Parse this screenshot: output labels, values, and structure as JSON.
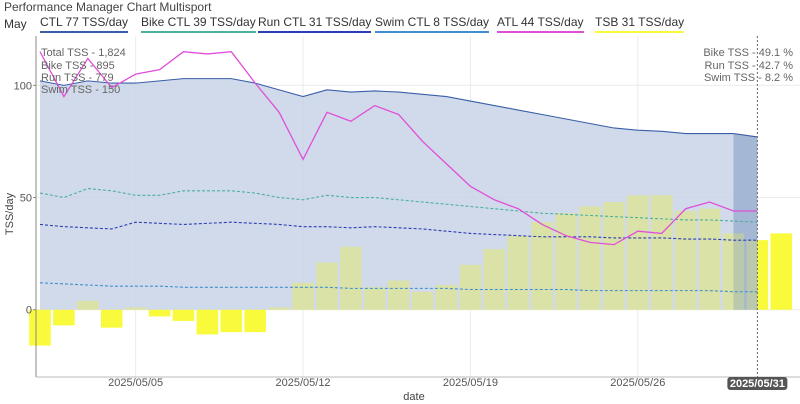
{
  "header": {
    "title": "Performance Manager Chart Multisport",
    "month": "May"
  },
  "legend": [
    {
      "label": "CTL  77 TSS/day",
      "color": "#3a5fa8"
    },
    {
      "label": "Bike CTL  39 TSS/day",
      "color": "#4ab0a0"
    },
    {
      "label": "Run CTL  31 TSS/day",
      "color": "#2b3fb5"
    },
    {
      "label": "Swim CTL  8 TSS/day",
      "color": "#3f8fd0"
    },
    {
      "label": "ATL  44 TSS/day",
      "color": "#e04fd8"
    },
    {
      "label": "TSB  31 TSS/day",
      "color": "#fafa3c"
    }
  ],
  "stats_left": [
    "Total TSS - 1,824",
    "Bike TSS - 895",
    "Run TSS - 779",
    "Swim TSS - 150"
  ],
  "stats_right": [
    "Bike TSS - 49.1 %",
    "Run TSS - 42.7 %",
    "Swim TSS - 8.2 %"
  ],
  "cursor_label": "2025/05/31",
  "chart_data": {
    "type": "line",
    "xlabel": "date",
    "ylabel": "TSS/day",
    "x_ticks": [
      "2025/05/05",
      "2025/05/12",
      "2025/05/19",
      "2025/05/26"
    ],
    "y_ticks": [
      0,
      50,
      100
    ],
    "ylim": [
      -30,
      122
    ],
    "x": [
      "2025/05/01",
      "2025/05/02",
      "2025/05/03",
      "2025/05/04",
      "2025/05/05",
      "2025/05/06",
      "2025/05/07",
      "2025/05/08",
      "2025/05/09",
      "2025/05/10",
      "2025/05/11",
      "2025/05/12",
      "2025/05/13",
      "2025/05/14",
      "2025/05/15",
      "2025/05/16",
      "2025/05/17",
      "2025/05/18",
      "2025/05/19",
      "2025/05/20",
      "2025/05/21",
      "2025/05/22",
      "2025/05/23",
      "2025/05/24",
      "2025/05/25",
      "2025/05/26",
      "2025/05/27",
      "2025/05/28",
      "2025/05/29",
      "2025/05/30",
      "2025/05/31",
      "2025/06/01"
    ],
    "series": [
      {
        "name": "CTL",
        "color": "#3a5fa8",
        "style": "area",
        "values": [
          102,
          100,
          102,
          101,
          101,
          102,
          103,
          103,
          103,
          101,
          98,
          95,
          98,
          97,
          97.5,
          97,
          96,
          95,
          93,
          91,
          89,
          87,
          85,
          83,
          81,
          80,
          79.5,
          78.5,
          78.5,
          78.5,
          77,
          null
        ]
      },
      {
        "name": "Bike CTL",
        "color": "#4ab0a0",
        "style": "dashed",
        "values": [
          52,
          50,
          54,
          53,
          51,
          51,
          53,
          53,
          53,
          52,
          50,
          49,
          51,
          50,
          50,
          49,
          48,
          47,
          46,
          45,
          44,
          43,
          42.5,
          42,
          41.5,
          41,
          40.5,
          40,
          40,
          39.5,
          39,
          null
        ]
      },
      {
        "name": "Run CTL",
        "color": "#2b3fb5",
        "style": "dashed",
        "values": [
          38,
          37,
          36.5,
          36,
          39,
          38.5,
          38,
          38.5,
          39,
          38.5,
          38,
          37,
          37,
          36.5,
          37,
          36.5,
          36,
          35,
          34,
          33.5,
          33,
          32.5,
          32.5,
          32.5,
          32,
          32,
          32,
          31.5,
          31.5,
          31,
          31,
          null
        ]
      },
      {
        "name": "Swim CTL",
        "color": "#3f8fd0",
        "style": "dashed",
        "values": [
          12,
          11.5,
          11,
          10.5,
          10.5,
          10.5,
          10,
          10,
          10,
          10,
          10,
          10,
          10,
          9.5,
          9.5,
          9.5,
          9.5,
          9.5,
          9,
          9,
          9,
          9,
          9,
          8.5,
          8.5,
          8.5,
          8.5,
          8.5,
          8.5,
          8,
          8,
          null
        ]
      },
      {
        "name": "ATL",
        "color": "#e04fd8",
        "style": "solid",
        "values": [
          115,
          95,
          112,
          99,
          105,
          107,
          115,
          114,
          115,
          101,
          88,
          67,
          88,
          84,
          91,
          87,
          75,
          65,
          55,
          49,
          45,
          38,
          33,
          30,
          29,
          35,
          34,
          45,
          48,
          44,
          44,
          null
        ]
      },
      {
        "name": "TSB",
        "color": "#fafa3c",
        "style": "bar",
        "values": [
          -16,
          -7,
          4,
          -8,
          1,
          -3,
          -5,
          -11,
          -10,
          -10,
          1,
          12,
          21,
          28,
          10,
          13,
          8,
          11,
          20,
          27,
          33,
          39,
          43,
          46,
          48,
          51,
          51,
          44,
          45,
          34,
          31,
          34
        ]
      }
    ]
  }
}
